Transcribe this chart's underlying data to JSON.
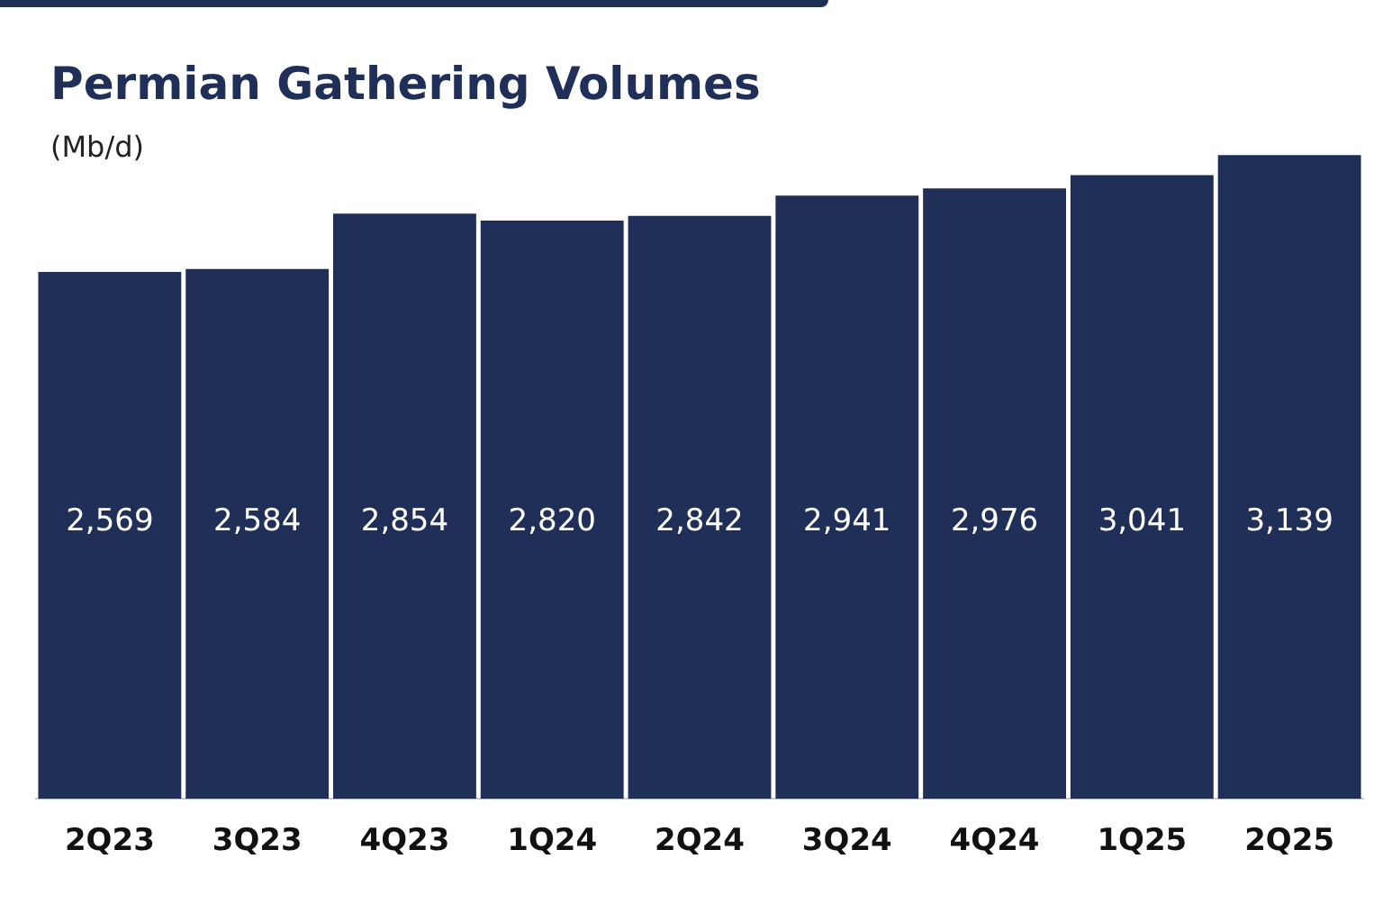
{
  "chart_data": {
    "type": "bar",
    "title": "Permian Gathering Volumes",
    "subtitle": "(Mb/d)",
    "categories": [
      "2Q23",
      "3Q23",
      "4Q23",
      "1Q24",
      "2Q24",
      "3Q24",
      "4Q24",
      "1Q25",
      "2Q25"
    ],
    "values": [
      2569,
      2584,
      2854,
      2820,
      2842,
      2941,
      2976,
      3041,
      3139
    ],
    "value_labels": [
      "2,569",
      "2,584",
      "2,854",
      "2,820",
      "2,842",
      "2,941",
      "2,976",
      "3,041",
      "3,139"
    ],
    "color": "#1f2f57",
    "grid": false,
    "legend": false
  }
}
